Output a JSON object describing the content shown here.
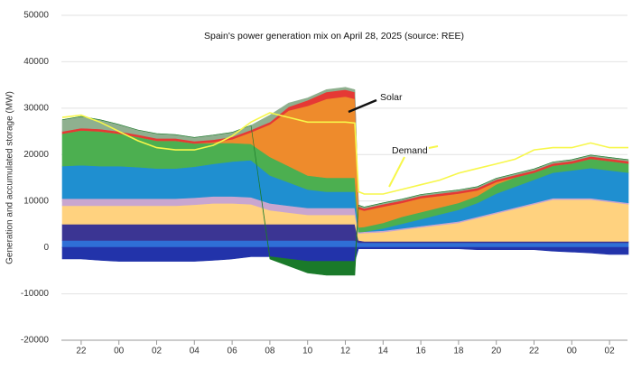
{
  "chart_data": {
    "type": "area",
    "stacked": true,
    "title": "Spain's power generation mix on April 28, 2025 (source: REE)",
    "y_label": "Generation and accumulated storage (MW)",
    "xlim": [
      21,
      51
    ],
    "ylim": [
      -20000,
      50000
    ],
    "yticks": [
      -20000,
      -10000,
      0,
      10000,
      20000,
      30000,
      40000,
      50000
    ],
    "xticks": [
      22,
      {
        "value": 24,
        "label": "00"
      },
      {
        "value": 26,
        "label": "02"
      },
      {
        "value": 28,
        "label": "04"
      },
      {
        "value": 30,
        "label": "06"
      },
      {
        "value": 32,
        "label": "08"
      },
      {
        "value": 34,
        "label": "10"
      },
      {
        "value": 36,
        "label": "12"
      },
      {
        "value": 38,
        "label": "14"
      },
      {
        "value": 40,
        "label": "16"
      },
      {
        "value": 42,
        "label": "18"
      },
      {
        "value": 44,
        "label": "20"
      },
      {
        "value": 46,
        "label": "22"
      },
      {
        "value": 48,
        "label": "00"
      },
      {
        "value": 50,
        "label": "02"
      }
    ],
    "grid": true,
    "x": [
      21,
      22,
      23,
      24,
      25,
      26,
      27,
      28,
      29,
      30,
      31,
      32,
      33,
      34,
      35,
      36,
      36.5,
      36.7,
      37,
      38,
      39,
      40,
      41,
      42,
      43,
      44,
      45,
      46,
      47,
      48,
      49,
      50,
      51
    ],
    "series": [
      {
        "color": "#2f6fd6",
        "values": [
          1500,
          1500,
          1500,
          1500,
          1500,
          1500,
          1500,
          1500,
          1500,
          1500,
          1500,
          1500,
          1500,
          1500,
          1500,
          1500,
          1500,
          1000,
          1000,
          1000,
          1000,
          1000,
          1000,
          1000,
          1000,
          1000,
          1000,
          1000,
          1000,
          1000,
          1000,
          1000,
          1000
        ]
      },
      {
        "color": "#3b3593",
        "values": [
          3500,
          3500,
          3500,
          3500,
          3500,
          3500,
          3500,
          3500,
          3500,
          3500,
          3500,
          3500,
          3500,
          3500,
          3500,
          3500,
          3500,
          500,
          300,
          300,
          300,
          300,
          300,
          300,
          300,
          300,
          300,
          300,
          300,
          300,
          300,
          300,
          300
        ]
      },
      {
        "color": "#ffd27f",
        "values": [
          4000,
          4000,
          4000,
          4000,
          4000,
          4000,
          4000,
          4200,
          4500,
          4500,
          4300,
          3000,
          2500,
          2000,
          2000,
          2000,
          2000,
          1500,
          1800,
          2000,
          2500,
          3000,
          3500,
          4000,
          5000,
          6000,
          7000,
          8000,
          9000,
          9000,
          9000,
          8500,
          8000
        ]
      },
      {
        "color": "#c9a6cf",
        "values": [
          1500,
          1500,
          1500,
          1500,
          1500,
          1500,
          1500,
          1500,
          1500,
          1500,
          1500,
          1500,
          1500,
          1500,
          1500,
          1500,
          1500,
          300,
          300,
          300,
          300,
          300,
          300,
          300,
          300,
          300,
          300,
          300,
          300,
          300,
          300,
          300,
          300
        ]
      },
      {
        "color": "#1f8fd0",
        "values": [
          7000,
          7200,
          7000,
          7000,
          6800,
          6500,
          6500,
          6700,
          7000,
          7500,
          8000,
          6000,
          5000,
          4000,
          3500,
          3500,
          3500,
          0,
          0,
          500,
          1000,
          1500,
          2000,
          2500,
          3000,
          4000,
          4500,
          5000,
          5500,
          6000,
          6500,
          6500,
          6500
        ]
      },
      {
        "color": "#4caf50",
        "values": [
          7000,
          7500,
          7500,
          7000,
          6500,
          6000,
          6000,
          5000,
          4500,
          4000,
          3500,
          4000,
          3500,
          3000,
          3000,
          3000,
          3000,
          1000,
          1000,
          1200,
          1500,
          1500,
          1500,
          1500,
          1500,
          2000,
          2000,
          1500,
          1500,
          1500,
          2000,
          2000,
          2000
        ]
      },
      {
        "name": "Solar",
        "color": "#ee8b2c",
        "values": [
          0,
          0,
          0,
          0,
          0,
          0,
          0,
          0,
          200,
          800,
          2500,
          7000,
          12000,
          15000,
          17000,
          17500,
          17000,
          4000,
          3500,
          3500,
          3000,
          3000,
          2500,
          2000,
          1200,
          500,
          0,
          0,
          0,
          0,
          0,
          0,
          0
        ]
      },
      {
        "color": "#e53935",
        "values": [
          500,
          500,
          500,
          500,
          500,
          500,
          500,
          500,
          500,
          500,
          500,
          500,
          800,
          1200,
          1500,
          1500,
          1500,
          500,
          500,
          500,
          500,
          500,
          500,
          500,
          500,
          500,
          500,
          500,
          500,
          500,
          500,
          500,
          500
        ]
      },
      {
        "color": "#8fb08f",
        "values": [
          2500,
          2500,
          2000,
          1500,
          1000,
          1000,
          800,
          800,
          1000,
          1000,
          1000,
          1500,
          800,
          500,
          500,
          500,
          500,
          300,
          300,
          300,
          300,
          300,
          300,
          300,
          300,
          300,
          300,
          300,
          300,
          300,
          300,
          300,
          300
        ]
      },
      {
        "color": "#2233aa",
        "values": [
          -2500,
          -2500,
          -2800,
          -3000,
          -3000,
          -3000,
          -3000,
          -3000,
          -2800,
          -2500,
          -2000,
          -2000,
          -2500,
          -3000,
          -3000,
          -3000,
          -3000,
          -300,
          -300,
          -300,
          -300,
          -300,
          -300,
          -300,
          -500,
          -500,
          -500,
          -500,
          -800,
          -1000,
          -1200,
          -1500,
          -1500
        ]
      },
      {
        "color": "#1a7a2a",
        "values": [
          0,
          0,
          0,
          0,
          0,
          0,
          0,
          0,
          0,
          0,
          0,
          -500,
          -1500,
          -2500,
          -3000,
          -3000,
          -3000,
          0,
          0,
          0,
          0,
          0,
          0,
          0,
          0,
          0,
          0,
          0,
          0,
          0,
          0,
          0,
          0
        ]
      }
    ],
    "lines": [
      {
        "name": "Demand",
        "color": "#f7f74a",
        "values": [
          28000,
          28500,
          27000,
          25000,
          23000,
          21500,
          21000,
          21000,
          22000,
          24000,
          27000,
          29000,
          28000,
          27000,
          27000,
          27000,
          26800,
          12000,
          11500,
          11500,
          12500,
          13500,
          14500,
          16000,
          17000,
          18000,
          19000,
          21000,
          21500,
          21500,
          22500,
          21500,
          21500
        ]
      }
    ]
  }
}
